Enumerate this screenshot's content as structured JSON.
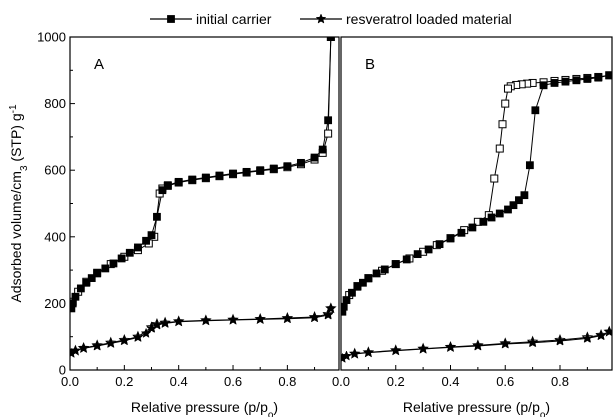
{
  "legend": {
    "placement": "top-center",
    "entries": [
      {
        "label": "initial carrier",
        "marker": "filled-square"
      },
      {
        "label": "resveratrol loaded material",
        "marker": "star"
      }
    ]
  },
  "y_axis": {
    "label_main": "Adsorbed volume/cm",
    "label_sub": "3",
    "label_mid": " (STP) g",
    "label_sup": "-1",
    "range": [
      0,
      1000
    ],
    "ticks": [
      "0",
      "200",
      "400",
      "600",
      "800",
      "1000"
    ]
  },
  "chart_data": [
    {
      "type": "line",
      "panel": "A",
      "xlabel_main": "Relative pressure (p/p",
      "xlabel_sub": "o",
      "xlabel_end": ")",
      "xlim": [
        0,
        0.99
      ],
      "ylim": [
        0,
        1000
      ],
      "xticks": [
        "0.0",
        "0.2",
        "0.4",
        "0.6",
        "0.8"
      ],
      "series": [
        {
          "name": "initial carrier",
          "adsorption_marker": "filled-square",
          "desorption_marker": "open-square",
          "adsorption": [
            [
              0.005,
              185
            ],
            [
              0.01,
              200
            ],
            [
              0.02,
              220
            ],
            [
              0.04,
              245
            ],
            [
              0.06,
              262
            ],
            [
              0.08,
              276
            ],
            [
              0.1,
              290
            ],
            [
              0.13,
              305
            ],
            [
              0.16,
              320
            ],
            [
              0.19,
              335
            ],
            [
              0.22,
              352
            ],
            [
              0.25,
              368
            ],
            [
              0.28,
              388
            ],
            [
              0.3,
              405
            ],
            [
              0.32,
              460
            ],
            [
              0.34,
              540
            ],
            [
              0.36,
              555
            ],
            [
              0.4,
              565
            ],
            [
              0.45,
              572
            ],
            [
              0.5,
              578
            ],
            [
              0.55,
              584
            ],
            [
              0.6,
              590
            ],
            [
              0.65,
              595
            ],
            [
              0.7,
              600
            ],
            [
              0.75,
              605
            ],
            [
              0.8,
              612
            ],
            [
              0.85,
              622
            ],
            [
              0.9,
              638
            ],
            [
              0.93,
              662
            ],
            [
              0.95,
              750
            ],
            [
              0.96,
              1000
            ]
          ],
          "desorption": [
            [
              0.96,
              1000
            ],
            [
              0.95,
              710
            ],
            [
              0.93,
              652
            ],
            [
              0.9,
              632
            ],
            [
              0.85,
              618
            ],
            [
              0.8,
              609
            ],
            [
              0.75,
              603
            ],
            [
              0.7,
              598
            ],
            [
              0.65,
              593
            ],
            [
              0.6,
              588
            ],
            [
              0.55,
              582
            ],
            [
              0.5,
              576
            ],
            [
              0.45,
              570
            ],
            [
              0.4,
              563
            ],
            [
              0.36,
              553
            ],
            [
              0.34,
              545
            ],
            [
              0.33,
              530
            ],
            [
              0.31,
              400
            ],
            [
              0.29,
              380
            ],
            [
              0.25,
              360
            ],
            [
              0.2,
              340
            ],
            [
              0.15,
              318
            ],
            [
              0.1,
              292
            ],
            [
              0.06,
              265
            ],
            [
              0.03,
              235
            ],
            [
              0.01,
              205
            ]
          ]
        },
        {
          "name": "resveratrol loaded material",
          "adsorption_marker": "star",
          "desorption_marker": "open-star",
          "adsorption": [
            [
              0.005,
              50
            ],
            [
              0.02,
              58
            ],
            [
              0.05,
              65
            ],
            [
              0.1,
              72
            ],
            [
              0.15,
              80
            ],
            [
              0.2,
              88
            ],
            [
              0.25,
              98
            ],
            [
              0.28,
              110
            ],
            [
              0.3,
              125
            ],
            [
              0.32,
              135
            ],
            [
              0.35,
              140
            ],
            [
              0.4,
              145
            ],
            [
              0.5,
              148
            ],
            [
              0.6,
              150
            ],
            [
              0.7,
              152
            ],
            [
              0.8,
              154
            ],
            [
              0.9,
              157
            ],
            [
              0.95,
              165
            ],
            [
              0.96,
              185
            ]
          ],
          "desorption": [
            [
              0.96,
              185
            ],
            [
              0.95,
              168
            ],
            [
              0.9,
              159
            ],
            [
              0.8,
              156
            ],
            [
              0.7,
              153
            ],
            [
              0.6,
              151
            ],
            [
              0.5,
              149
            ],
            [
              0.4,
              146
            ],
            [
              0.35,
              142
            ],
            [
              0.32,
              138
            ],
            [
              0.3,
              128
            ],
            [
              0.25,
              100
            ],
            [
              0.2,
              90
            ],
            [
              0.15,
              82
            ],
            [
              0.1,
              74
            ],
            [
              0.05,
              66
            ],
            [
              0.02,
              58
            ]
          ]
        }
      ]
    },
    {
      "type": "line",
      "panel": "B",
      "xlabel_main": "Relative pressure (p/p",
      "xlabel_sub": "o",
      "xlabel_end": ")",
      "xlim": [
        0,
        0.99
      ],
      "ylim": [
        0,
        1000
      ],
      "xticks": [
        "0.0",
        "0.2",
        "0.4",
        "0.6",
        "0.8"
      ],
      "series": [
        {
          "name": "initial carrier",
          "adsorption_marker": "filled-square",
          "desorption_marker": "open-square",
          "adsorption": [
            [
              0.005,
              175
            ],
            [
              0.01,
              190
            ],
            [
              0.02,
              210
            ],
            [
              0.04,
              232
            ],
            [
              0.06,
              250
            ],
            [
              0.08,
              262
            ],
            [
              0.1,
              275
            ],
            [
              0.13,
              290
            ],
            [
              0.16,
              302
            ],
            [
              0.2,
              318
            ],
            [
              0.24,
              332
            ],
            [
              0.28,
              348
            ],
            [
              0.32,
              362
            ],
            [
              0.36,
              378
            ],
            [
              0.4,
              395
            ],
            [
              0.44,
              412
            ],
            [
              0.48,
              428
            ],
            [
              0.52,
              445
            ],
            [
              0.55,
              458
            ],
            [
              0.58,
              470
            ],
            [
              0.61,
              482
            ],
            [
              0.63,
              495
            ],
            [
              0.65,
              510
            ],
            [
              0.67,
              525
            ],
            [
              0.69,
              615
            ],
            [
              0.71,
              780
            ],
            [
              0.74,
              855
            ],
            [
              0.78,
              862
            ],
            [
              0.82,
              866
            ],
            [
              0.86,
              870
            ],
            [
              0.9,
              874
            ],
            [
              0.94,
              878
            ],
            [
              0.98,
              885
            ]
          ],
          "desorption": [
            [
              0.98,
              885
            ],
            [
              0.94,
              880
            ],
            [
              0.9,
              877
            ],
            [
              0.86,
              874
            ],
            [
              0.82,
              871
            ],
            [
              0.78,
              868
            ],
            [
              0.74,
              864
            ],
            [
              0.7,
              862
            ],
            [
              0.68,
              860
            ],
            [
              0.66,
              858
            ],
            [
              0.64,
              856
            ],
            [
              0.62,
              852
            ],
            [
              0.61,
              845
            ],
            [
              0.6,
              800
            ],
            [
              0.59,
              738
            ],
            [
              0.58,
              665
            ],
            [
              0.56,
              575
            ],
            [
              0.54,
              465
            ],
            [
              0.5,
              445
            ],
            [
              0.45,
              420
            ],
            [
              0.4,
              396
            ],
            [
              0.35,
              375
            ],
            [
              0.3,
              355
            ],
            [
              0.25,
              335
            ],
            [
              0.2,
              318
            ],
            [
              0.15,
              298
            ],
            [
              0.1,
              276
            ],
            [
              0.06,
              252
            ],
            [
              0.03,
              225
            ]
          ]
        },
        {
          "name": "resveratrol loaded material",
          "adsorption_marker": "star",
          "desorption_marker": "open-star",
          "adsorption": [
            [
              0.005,
              35
            ],
            [
              0.02,
              42
            ],
            [
              0.05,
              48
            ],
            [
              0.1,
              52
            ],
            [
              0.2,
              58
            ],
            [
              0.3,
              63
            ],
            [
              0.4,
              68
            ],
            [
              0.5,
              72
            ],
            [
              0.6,
              78
            ],
            [
              0.7,
              82
            ],
            [
              0.8,
              87
            ],
            [
              0.9,
              95
            ],
            [
              0.95,
              103
            ],
            [
              0.98,
              115
            ]
          ],
          "desorption": [
            [
              0.98,
              115
            ],
            [
              0.95,
              105
            ],
            [
              0.9,
              98
            ],
            [
              0.8,
              90
            ],
            [
              0.7,
              85
            ],
            [
              0.6,
              80
            ],
            [
              0.5,
              74
            ],
            [
              0.4,
              69
            ],
            [
              0.3,
              64
            ],
            [
              0.2,
              59
            ],
            [
              0.1,
              53
            ],
            [
              0.05,
              49
            ]
          ]
        }
      ]
    }
  ]
}
